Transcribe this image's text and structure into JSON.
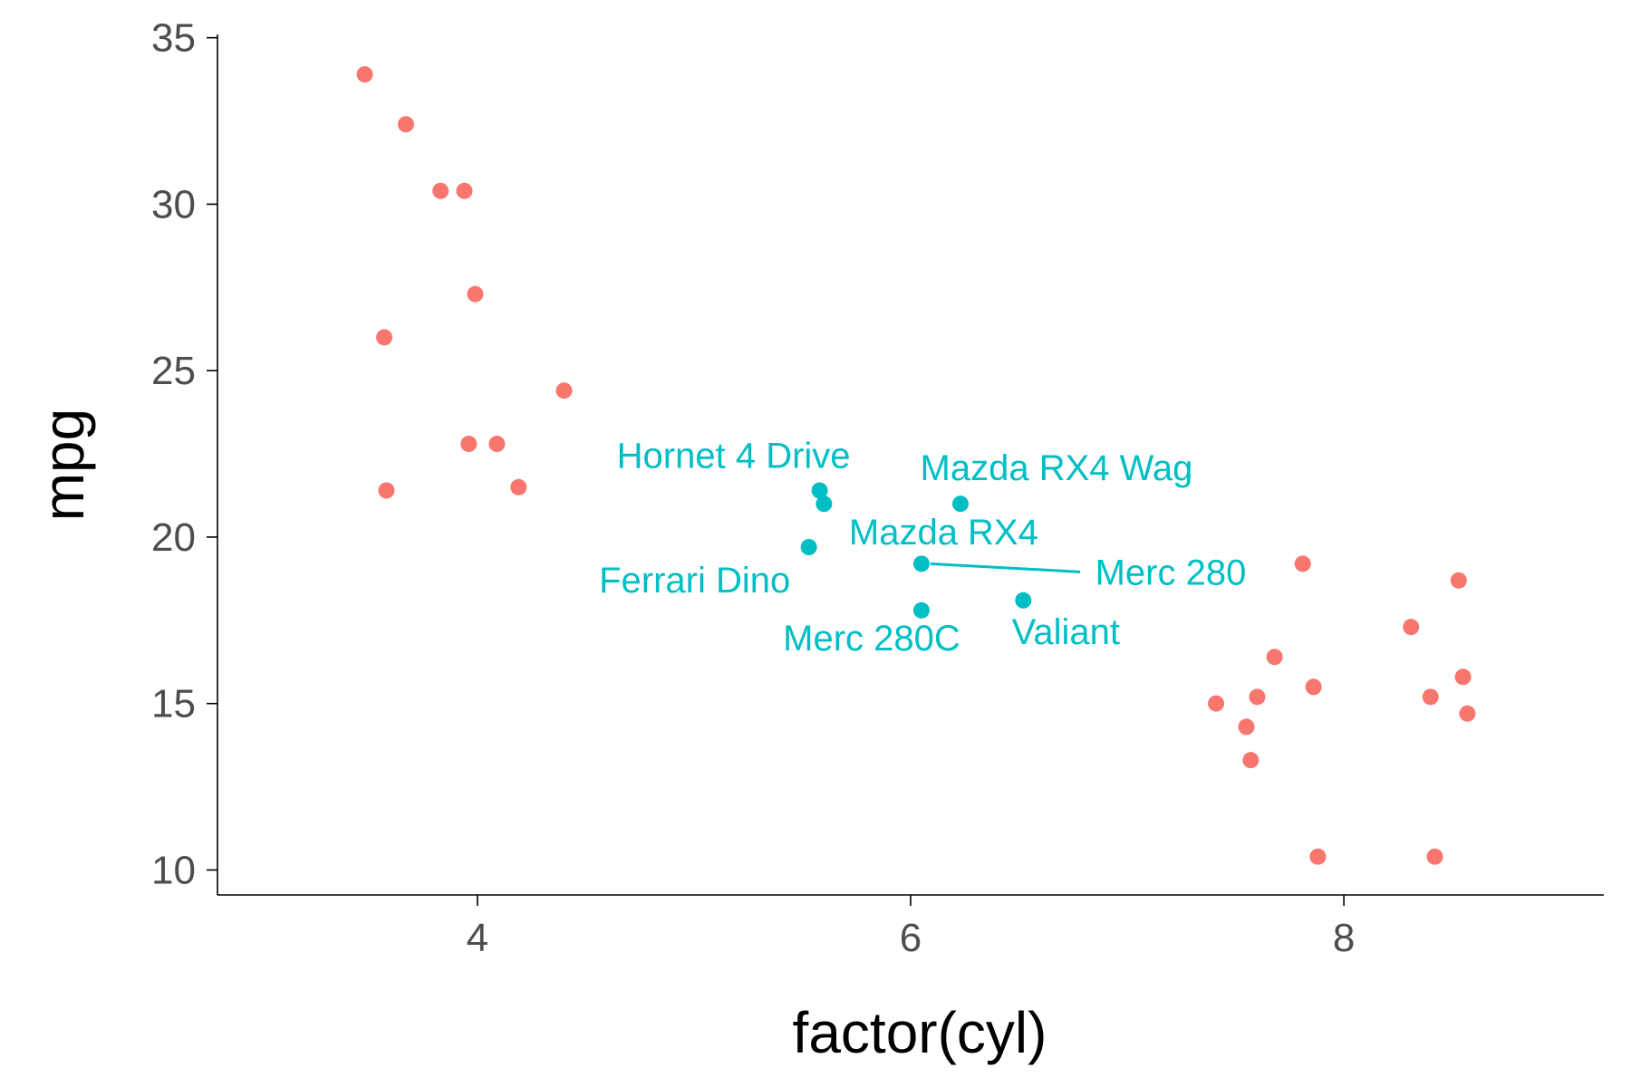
{
  "chart_data": {
    "type": "scatter",
    "title": "",
    "xlabel": "factor(cyl)",
    "ylabel": "mpg",
    "xlim": [
      2.8,
      9.2
    ],
    "ylim": [
      9.25,
      35.1
    ],
    "xticks": [
      4,
      6,
      8
    ],
    "yticks": [
      10,
      15,
      20,
      25,
      30,
      35
    ],
    "grid": false,
    "legend": "none",
    "colors": {
      "highlight": "#00bfc4",
      "other": "#f8766d",
      "axis": "#000000",
      "tick_label": "#4d4d4d"
    },
    "series": [
      {
        "color": "#f8766d",
        "points": [
          {
            "x": 3.48,
            "y": 33.9
          },
          {
            "x": 3.67,
            "y": 32.4
          },
          {
            "x": 3.83,
            "y": 30.4
          },
          {
            "x": 3.94,
            "y": 30.4
          },
          {
            "x": 3.99,
            "y": 27.3
          },
          {
            "x": 3.57,
            "y": 26.0
          },
          {
            "x": 4.4,
            "y": 24.4
          },
          {
            "x": 3.96,
            "y": 22.8
          },
          {
            "x": 4.09,
            "y": 22.8
          },
          {
            "x": 4.19,
            "y": 21.5
          },
          {
            "x": 3.58,
            "y": 21.4
          },
          {
            "x": 7.81,
            "y": 19.2
          },
          {
            "x": 8.53,
            "y": 18.7
          },
          {
            "x": 8.31,
            "y": 17.3
          },
          {
            "x": 7.68,
            "y": 16.4
          },
          {
            "x": 7.86,
            "y": 15.5
          },
          {
            "x": 8.55,
            "y": 15.8
          },
          {
            "x": 7.6,
            "y": 15.2
          },
          {
            "x": 8.4,
            "y": 15.2
          },
          {
            "x": 7.41,
            "y": 15.0
          },
          {
            "x": 8.57,
            "y": 14.7
          },
          {
            "x": 7.55,
            "y": 14.3
          },
          {
            "x": 7.57,
            "y": 13.3
          },
          {
            "x": 7.88,
            "y": 10.4
          },
          {
            "x": 8.42,
            "y": 10.4
          }
        ]
      },
      {
        "color": "#00bfc4",
        "points": [
          {
            "x": 5.58,
            "y": 21.4,
            "label": "Hornet 4 Drive"
          },
          {
            "x": 6.23,
            "y": 21.0,
            "label": "Mazda RX4 Wag"
          },
          {
            "x": 5.6,
            "y": 21.0,
            "label": "Mazda RX4"
          },
          {
            "x": 5.53,
            "y": 19.7,
            "label": "Ferrari Dino"
          },
          {
            "x": 6.05,
            "y": 19.2,
            "label": "Merc 280"
          },
          {
            "x": 6.52,
            "y": 18.1,
            "label": "Valiant"
          },
          {
            "x": 6.05,
            "y": 17.8,
            "label": "Merc 280C"
          }
        ]
      }
    ]
  }
}
